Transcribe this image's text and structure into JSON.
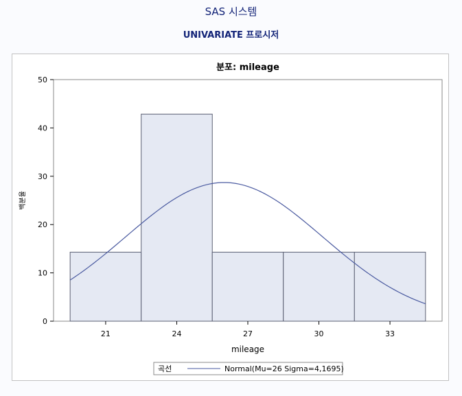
{
  "header": {
    "title": "SAS 시스템",
    "subtitle": "UNIVARIATE 프로시저"
  },
  "colors": {
    "header_text": "#112277",
    "bar_fill": "#e5e9f3",
    "bar_stroke": "#5b5f73",
    "curve": "#4a5aa0",
    "frame_border": "#c1c1c1"
  },
  "chart_data": {
    "type": "bar",
    "title": "분포: mileage",
    "xlabel": "mileage",
    "ylabel": "백분율",
    "bins": [
      {
        "start": 19.5,
        "end": 22.5,
        "value": 14.286
      },
      {
        "start": 22.5,
        "end": 25.5,
        "value": 42.857
      },
      {
        "start": 25.5,
        "end": 28.5,
        "value": 14.286
      },
      {
        "start": 28.5,
        "end": 31.5,
        "value": 14.286
      },
      {
        "start": 31.5,
        "end": 34.5,
        "value": 14.286
      }
    ],
    "xlim": [
      18.8,
      35.2
    ],
    "ylim": [
      0,
      50
    ],
    "x_ticks": [
      21,
      24,
      27,
      30,
      33
    ],
    "y_ticks": [
      0,
      10,
      20,
      30,
      40,
      50
    ],
    "grid": false,
    "series": [
      {
        "name": "Normal(Mu=26 Sigma=4,1695)",
        "type": "normal_curve",
        "mu": 26,
        "sigma": 4.1695,
        "bin_width": 3,
        "x_range": [
          19.5,
          34.5
        ]
      }
    ],
    "legend": {
      "label": "곡선",
      "entries": [
        "Normal(Mu=26 Sigma=4,1695)"
      ],
      "position": "bottom"
    }
  }
}
